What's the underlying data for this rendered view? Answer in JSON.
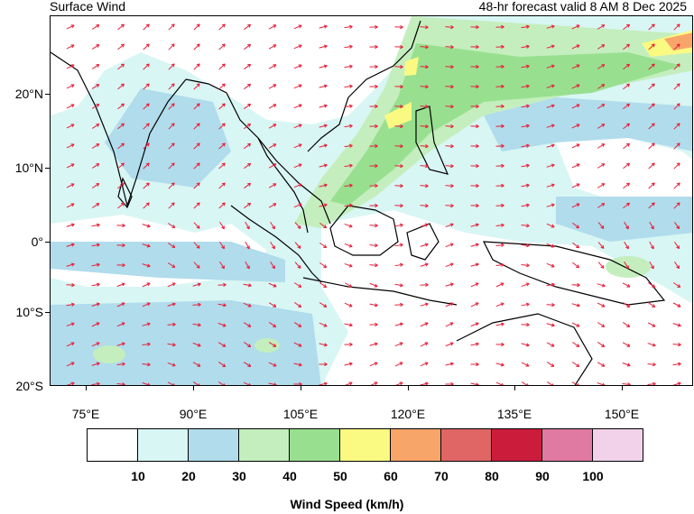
{
  "header": {
    "title": "Surface Wind",
    "valid": "48-hr forecast valid 8 AM 8 Dec 2025"
  },
  "map": {
    "lat_labels": [
      "20°N",
      "10°N",
      "0°",
      "10°S",
      "20°S"
    ],
    "lon_labels": [
      "75°E",
      "90°E",
      "105°E",
      "120°E",
      "135°E",
      "150°E"
    ],
    "extent": {
      "lon_min": 70,
      "lon_max": 160,
      "lat_min": -20,
      "lat_max": 30
    },
    "arrow_color": "#e8203a",
    "coast_color": "#000000"
  },
  "legend": {
    "title": "Wind Speed (km/h)",
    "colors": [
      "#ffffff",
      "#d8f6f4",
      "#b0dcec",
      "#c4eebe",
      "#98e090",
      "#fafa82",
      "#f8a56a",
      "#e06666",
      "#cc1c3c",
      "#e07aa2",
      "#f2d2ea"
    ],
    "tick_labels": [
      "10",
      "20",
      "30",
      "40",
      "50",
      "60",
      "70",
      "80",
      "90",
      "100"
    ]
  }
}
